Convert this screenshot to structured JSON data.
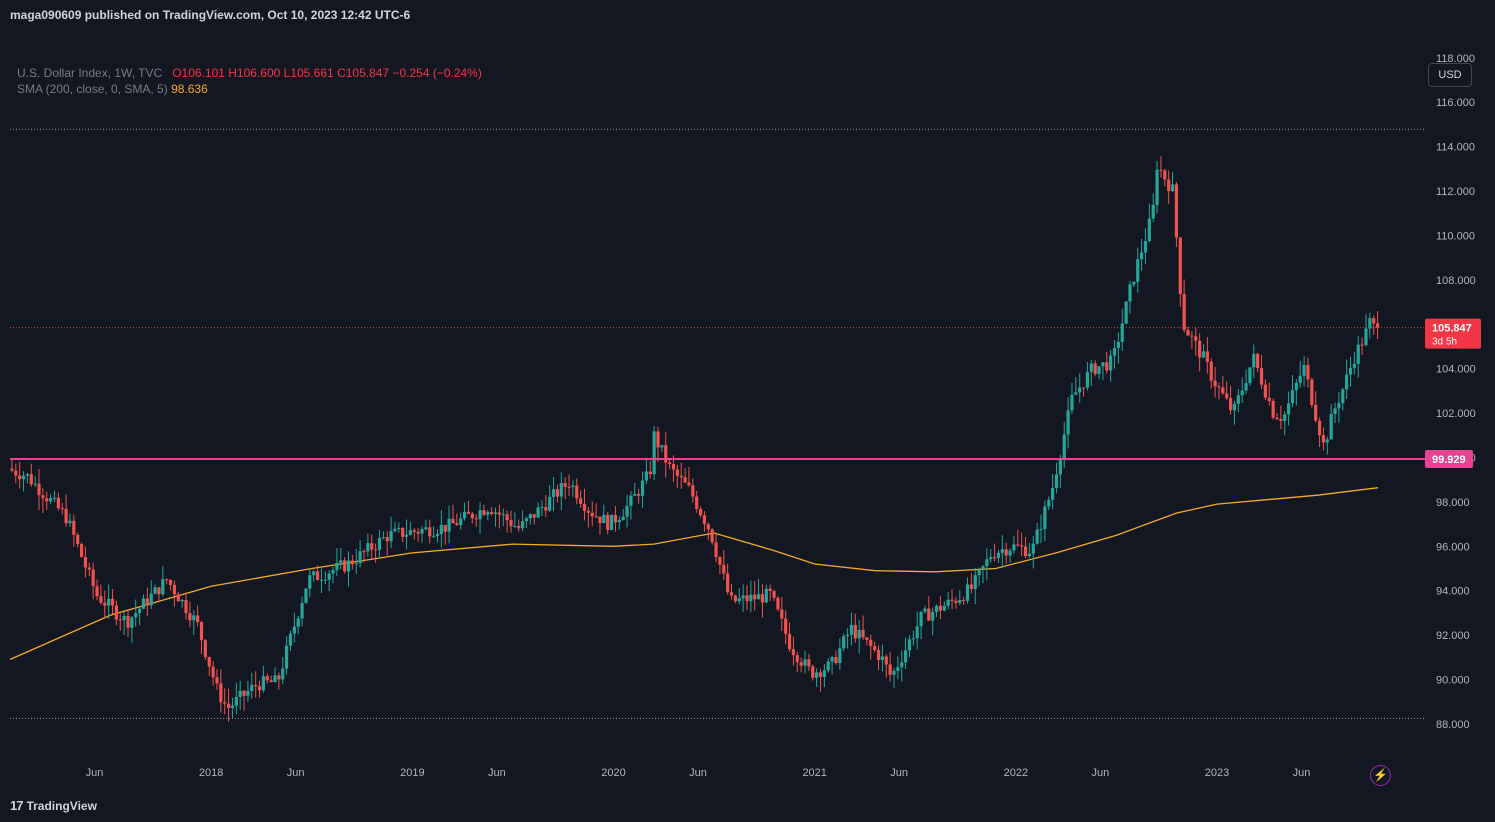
{
  "header": {
    "published_by": "maga090609 published on TradingView.com, Oct 10, 2023 12:42 UTC-6"
  },
  "legend": {
    "symbol": "U.S. Dollar Index, 1W, TVC",
    "open": "O106.101",
    "high": "H106.600",
    "low": "L105.661",
    "close": "C105.847",
    "change": "−0.254 (−0.24%)",
    "sma_label": "SMA (200, close, 0, SMA, 5)",
    "sma_value": "98.636"
  },
  "currency_button": "USD",
  "footer": {
    "brand_mark": "17",
    "brand": "TradingView"
  },
  "colors": {
    "up": "#26a69a",
    "down": "#ef5350",
    "sma": "#f7a928",
    "support_line": "#e84393",
    "current_price": "#f23645",
    "background": "#131722"
  },
  "chart_data": {
    "type": "candlestick",
    "ylim": [
      86.6,
      118.8
    ],
    "y_ticks": [
      "118.000",
      "116.000",
      "114.000",
      "112.000",
      "110.000",
      "108.000",
      "106.000",
      "104.000",
      "102.000",
      "100.000",
      "98.000",
      "96.000",
      "94.000",
      "92.000",
      "90.000",
      "88.000"
    ],
    "x_ticks": [
      "Jun",
      "2018",
      "Jun",
      "2019",
      "Jun",
      "2020",
      "Jun",
      "2021",
      "Jun",
      "2022",
      "Jun",
      "2023",
      "Jun"
    ],
    "current_price": {
      "label": "105.847",
      "countdown": "3d 5h",
      "value": 105.847
    },
    "support_level": {
      "label": "99.929",
      "value": 99.929
    },
    "dotted_levels": [
      114.78,
      88.25
    ],
    "sma_path": [
      [
        2017.0,
        90.9
      ],
      [
        2017.5,
        92.9
      ],
      [
        2018.0,
        94.2
      ],
      [
        2018.5,
        95.0
      ],
      [
        2019.0,
        95.7
      ],
      [
        2019.5,
        96.1
      ],
      [
        2020.0,
        96.0
      ],
      [
        2020.2,
        96.1
      ],
      [
        2020.5,
        96.6
      ],
      [
        2020.8,
        95.8
      ],
      [
        2021.0,
        95.2
      ],
      [
        2021.3,
        94.9
      ],
      [
        2021.6,
        94.85
      ],
      [
        2021.9,
        95.0
      ],
      [
        2022.2,
        95.7
      ],
      [
        2022.5,
        96.5
      ],
      [
        2022.8,
        97.5
      ],
      [
        2023.0,
        97.9
      ],
      [
        2023.5,
        98.3
      ],
      [
        2023.8,
        98.64
      ]
    ],
    "anchors": [
      [
        2017.0,
        99.5
      ],
      [
        2017.1,
        99.2
      ],
      [
        2017.3,
        97.3
      ],
      [
        2017.45,
        93.8
      ],
      [
        2017.6,
        92.6
      ],
      [
        2017.8,
        94.5
      ],
      [
        2017.95,
        92.5
      ],
      [
        2018.05,
        89.5
      ],
      [
        2018.1,
        88.7
      ],
      [
        2018.25,
        89.8
      ],
      [
        2018.35,
        89.9
      ],
      [
        2018.5,
        94.5
      ],
      [
        2018.7,
        95.2
      ],
      [
        2018.9,
        96.5
      ],
      [
        2019.2,
        96.9
      ],
      [
        2019.4,
        97.8
      ],
      [
        2019.55,
        96.8
      ],
      [
        2019.75,
        98.5
      ],
      [
        2019.8,
        98.9
      ],
      [
        2019.9,
        97.6
      ],
      [
        2020.0,
        97.0
      ],
      [
        2020.1,
        97.9
      ],
      [
        2020.2,
        99.3
      ],
      [
        2020.22,
        101.0
      ],
      [
        2020.3,
        99.5
      ],
      [
        2020.4,
        98.5
      ],
      [
        2020.5,
        96.7
      ],
      [
        2020.6,
        93.5
      ],
      [
        2020.8,
        93.8
      ],
      [
        2020.9,
        91.5
      ],
      [
        2021.0,
        90.3
      ],
      [
        2021.1,
        90.6
      ],
      [
        2021.2,
        92.3
      ],
      [
        2021.35,
        91.0
      ],
      [
        2021.4,
        90.1
      ],
      [
        2021.55,
        92.8
      ],
      [
        2021.7,
        93.5
      ],
      [
        2021.8,
        94.1
      ],
      [
        2021.9,
        95.7
      ],
      [
        2022.0,
        96.0
      ],
      [
        2022.1,
        95.8
      ],
      [
        2022.2,
        98.6
      ],
      [
        2022.3,
        102.7
      ],
      [
        2022.4,
        104.0
      ],
      [
        2022.5,
        104.3
      ],
      [
        2022.6,
        108.0
      ],
      [
        2022.7,
        111.0
      ],
      [
        2022.72,
        113.2
      ],
      [
        2022.8,
        112.0
      ],
      [
        2022.85,
        106.0
      ],
      [
        2022.95,
        104.5
      ],
      [
        2023.0,
        103.5
      ],
      [
        2023.1,
        102.0
      ],
      [
        2023.2,
        104.5
      ],
      [
        2023.3,
        102.0
      ],
      [
        2023.35,
        101.8
      ],
      [
        2023.45,
        104.1
      ],
      [
        2023.5,
        102.3
      ],
      [
        2023.55,
        100.5
      ],
      [
        2023.6,
        102.1
      ],
      [
        2023.65,
        103.2
      ],
      [
        2023.7,
        104.5
      ],
      [
        2023.75,
        105.4
      ],
      [
        2023.78,
        106.1
      ],
      [
        2023.8,
        105.85
      ]
    ]
  }
}
